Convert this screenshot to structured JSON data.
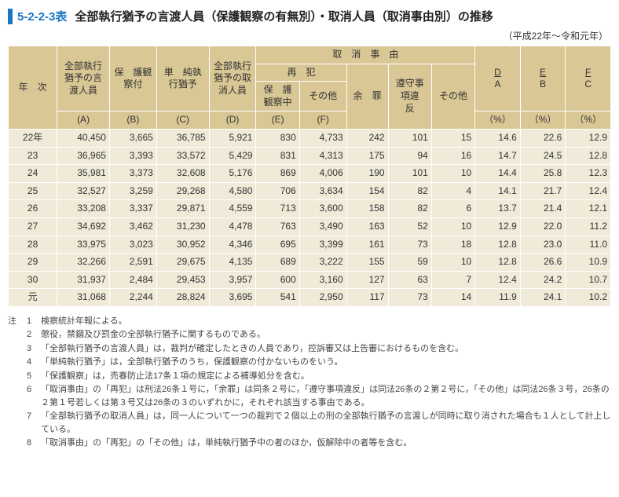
{
  "header": {
    "code": "5-2-2-3表",
    "title": "全部執行猶予の言渡人員（保護観察の有無別）・取消人員（取消事由別）の推移",
    "period": "（平成22年～令和元年）"
  },
  "colHeaders": {
    "year": "年　次",
    "colA": "全部執行猶予の言渡人員",
    "colA2": "(A)",
    "colB": "保　護観察付",
    "colB2": "(B)",
    "colC": "単　純執行猶予",
    "colC2": "(C)",
    "colD": "全部執行猶予の取消人員",
    "colD2": "(D)",
    "cancelGroup": "取　消　事　由",
    "reoffGroup": "再　犯",
    "colE": "保　護観察中",
    "colE2": "(E)",
    "colF": "その他",
    "colF2": "(F)",
    "yozai": "余　罪",
    "junshu": "遵守事項違　反",
    "sonota": "その他",
    "ratioDA": "D\nA",
    "ratioEB": "E\nB",
    "ratioFC": "F\nC",
    "pct": "（%）"
  },
  "rows": [
    {
      "y": "22年",
      "a": "40,450",
      "b": "3,665",
      "c": "36,785",
      "d": "5,921",
      "e": "830",
      "f": "4,733",
      "g": "242",
      "h": "101",
      "i": "15",
      "da": "14.6",
      "eb": "22.6",
      "fc": "12.9"
    },
    {
      "y": "23",
      "a": "36,965",
      "b": "3,393",
      "c": "33,572",
      "d": "5,429",
      "e": "831",
      "f": "4,313",
      "g": "175",
      "h": "94",
      "i": "16",
      "da": "14.7",
      "eb": "24.5",
      "fc": "12.8"
    },
    {
      "y": "24",
      "a": "35,981",
      "b": "3,373",
      "c": "32,608",
      "d": "5,176",
      "e": "869",
      "f": "4,006",
      "g": "190",
      "h": "101",
      "i": "10",
      "da": "14.4",
      "eb": "25.8",
      "fc": "12.3"
    },
    {
      "y": "25",
      "a": "32,527",
      "b": "3,259",
      "c": "29,268",
      "d": "4,580",
      "e": "706",
      "f": "3,634",
      "g": "154",
      "h": "82",
      "i": "4",
      "da": "14.1",
      "eb": "21.7",
      "fc": "12.4"
    },
    {
      "y": "26",
      "a": "33,208",
      "b": "3,337",
      "c": "29,871",
      "d": "4,559",
      "e": "713",
      "f": "3,600",
      "g": "158",
      "h": "82",
      "i": "6",
      "da": "13.7",
      "eb": "21.4",
      "fc": "12.1"
    },
    {
      "y": "27",
      "a": "34,692",
      "b": "3,462",
      "c": "31,230",
      "d": "4,478",
      "e": "763",
      "f": "3,490",
      "g": "163",
      "h": "52",
      "i": "10",
      "da": "12.9",
      "eb": "22.0",
      "fc": "11.2"
    },
    {
      "y": "28",
      "a": "33,975",
      "b": "3,023",
      "c": "30,952",
      "d": "4,346",
      "e": "695",
      "f": "3,399",
      "g": "161",
      "h": "73",
      "i": "18",
      "da": "12.8",
      "eb": "23.0",
      "fc": "11.0"
    },
    {
      "y": "29",
      "a": "32,266",
      "b": "2,591",
      "c": "29,675",
      "d": "4,135",
      "e": "689",
      "f": "3,222",
      "g": "155",
      "h": "59",
      "i": "10",
      "da": "12.8",
      "eb": "26.6",
      "fc": "10.9"
    },
    {
      "y": "30",
      "a": "31,937",
      "b": "2,484",
      "c": "29,453",
      "d": "3,957",
      "e": "600",
      "f": "3,160",
      "g": "127",
      "h": "63",
      "i": "7",
      "da": "12.4",
      "eb": "24.2",
      "fc": "10.7"
    },
    {
      "y": "元",
      "a": "31,068",
      "b": "2,244",
      "c": "28,824",
      "d": "3,695",
      "e": "541",
      "f": "2,950",
      "g": "117",
      "h": "73",
      "i": "14",
      "da": "11.9",
      "eb": "24.1",
      "fc": "10.2"
    }
  ],
  "notes": {
    "label": "注",
    "items": [
      {
        "n": "1",
        "t": "検察統計年報による。"
      },
      {
        "n": "2",
        "t": "懲役，禁錮及び罰金の全部執行猶予に関するものである。"
      },
      {
        "n": "3",
        "t": "「全部執行猶予の言渡人員」は，裁判が確定したときの人員であり，控訴審又は上告審におけるものを含む。"
      },
      {
        "n": "4",
        "t": "「単純執行猶予」は，全部執行猶予のうち，保護観察の付かないものをいう。"
      },
      {
        "n": "5",
        "t": "「保護観察」は，売春防止法17条１項の規定による補導処分を含む。"
      },
      {
        "n": "6",
        "t": "「取消事由」の「再犯」は刑法26条１号に，「余罪」は同条２号に，「遵守事項違反」は同法26条の２第２号に，「その他」は同法26条３号，26条の２第１号若しくは第３号又は26条の３のいずれかに，それぞれ該当する事由である。"
      },
      {
        "n": "7",
        "t": "「全部執行猶予の取消人員」は，同一人について一つの裁判で２個以上の刑の全部執行猶予の言渡しが同時に取り消された場合も１人として計上している。"
      },
      {
        "n": "8",
        "t": "「取消事由」の「再犯」の「その他」は，単純執行猶予中の者のほか，仮解除中の者等を含む。"
      }
    ]
  }
}
